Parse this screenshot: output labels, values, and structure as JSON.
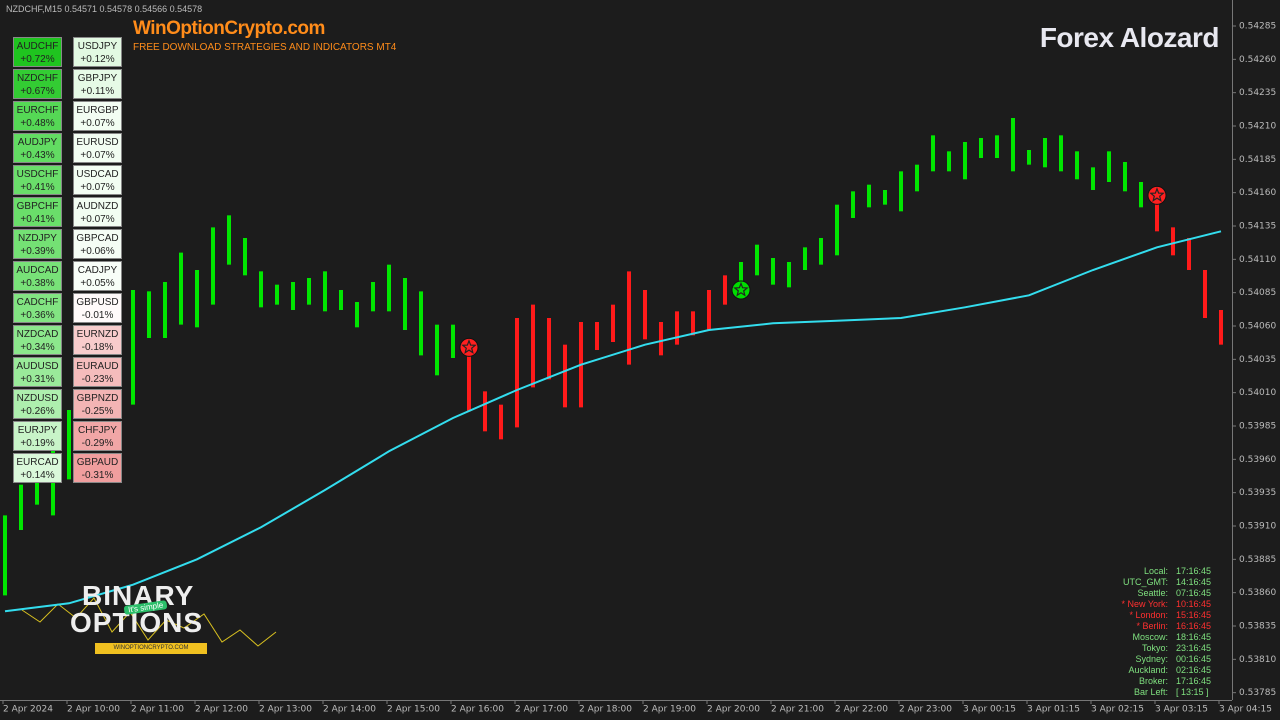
{
  "header": {
    "symbol_info": "NZDCHF,M15  0.54571 0.54578 0.54566 0.54578",
    "site": "WinOptionCrypto.com",
    "tagline": "FREE DOWNLOAD STRATEGIES AND INDICATORS MT4",
    "brand": "Forex Alozard"
  },
  "logo": {
    "line1": "BINARY",
    "line2": "OPTIONS",
    "badge": "It's simple",
    "url": "WINOPTIONCRYPTO.COM"
  },
  "currency_strength": {
    "columns": [
      [
        {
          "pair": "AUDCHF",
          "change": "+0.72%",
          "color": "#1fc41f"
        },
        {
          "pair": "NZDCHF",
          "change": "+0.67%",
          "color": "#33cc33"
        },
        {
          "pair": "EURCHF",
          "change": "+0.48%",
          "color": "#55d855"
        },
        {
          "pair": "AUDJPY",
          "change": "+0.43%",
          "color": "#62dc62"
        },
        {
          "pair": "USDCHF",
          "change": "+0.41%",
          "color": "#6ade6a"
        },
        {
          "pair": "GBPCHF",
          "change": "+0.41%",
          "color": "#6ade6a"
        },
        {
          "pair": "NZDJPY",
          "change": "+0.39%",
          "color": "#74e174"
        },
        {
          "pair": "AUDCAD",
          "change": "+0.38%",
          "color": "#78e278"
        },
        {
          "pair": "CADCHF",
          "change": "+0.36%",
          "color": "#82e482"
        },
        {
          "pair": "NZDCAD",
          "change": "+0.34%",
          "color": "#8ce78c"
        },
        {
          "pair": "AUDUSD",
          "change": "+0.31%",
          "color": "#9aea9a"
        },
        {
          "pair": "NZDUSD",
          "change": "+0.26%",
          "color": "#aeefae"
        },
        {
          "pair": "EURJPY",
          "change": "+0.19%",
          "color": "#c8f4c8"
        },
        {
          "pair": "EURCAD",
          "change": "+0.14%",
          "color": "#daf8da"
        }
      ],
      [
        {
          "pair": "USDJPY",
          "change": "+0.12%",
          "color": "#e2f9e2"
        },
        {
          "pair": "GBPJPY",
          "change": "+0.11%",
          "color": "#e6fae6"
        },
        {
          "pair": "EURGBP",
          "change": "+0.07%",
          "color": "#f2fdf2"
        },
        {
          "pair": "EURUSD",
          "change": "+0.07%",
          "color": "#f2fdf2"
        },
        {
          "pair": "USDCAD",
          "change": "+0.07%",
          "color": "#f2fdf2"
        },
        {
          "pair": "AUDNZD",
          "change": "+0.07%",
          "color": "#f2fdf2"
        },
        {
          "pair": "GBPCAD",
          "change": "+0.06%",
          "color": "#f5fdf5"
        },
        {
          "pair": "CADJPY",
          "change": "+0.05%",
          "color": "#f8fef8"
        },
        {
          "pair": "GBPUSD",
          "change": "-0.01%",
          "color": "#fffafa"
        },
        {
          "pair": "EURNZD",
          "change": "-0.18%",
          "color": "#f8cccc"
        },
        {
          "pair": "EURAUD",
          "change": "-0.23%",
          "color": "#f5bcbc"
        },
        {
          "pair": "GBPNZD",
          "change": "-0.25%",
          "color": "#f3b4b4"
        },
        {
          "pair": "CHFJPY",
          "change": "-0.29%",
          "color": "#f1a6a6"
        },
        {
          "pair": "GBPAUD",
          "change": "-0.31%",
          "color": "#f09e9e"
        }
      ]
    ]
  },
  "clock": {
    "rows": [
      {
        "label": "Local:",
        "time": "17:16:45",
        "color": "#7fe07f"
      },
      {
        "label": "UTC_GMT:",
        "time": "14:16:45",
        "color": "#7fe07f"
      },
      {
        "label": "Seattle:",
        "time": "07:16:45",
        "color": "#7fe07f"
      },
      {
        "label": "* New York:",
        "time": "10:16:45",
        "color": "#ff3030"
      },
      {
        "label": "* London:",
        "time": "15:16:45",
        "color": "#ff3030"
      },
      {
        "label": "* Berlin:",
        "time": "16:16:45",
        "color": "#ff3030"
      },
      {
        "label": "Moscow:",
        "time": "18:16:45",
        "color": "#7fe07f"
      },
      {
        "label": "Tokyo:",
        "time": "23:16:45",
        "color": "#7fe07f"
      },
      {
        "label": "Sydney:",
        "time": "00:16:45",
        "color": "#7fe07f"
      },
      {
        "label": "Auckland:",
        "time": "02:16:45",
        "color": "#7fe07f"
      },
      {
        "label": "Broker:",
        "time": "17:16:45",
        "color": "#7fe07f"
      },
      {
        "label": "Bar Left:",
        "time": "[ 13:15 ]",
        "color": "#7fe07f"
      }
    ]
  },
  "chart_data": {
    "type": "hilo",
    "high": [
      0.53918,
      0.53941,
      0.53952,
      0.53971,
      0.53997,
      null,
      null,
      null,
      0.54087,
      0.54086,
      0.54093,
      0.54115,
      0.54102,
      0.54134,
      0.54143,
      0.54126,
      0.54101,
      0.54091,
      0.54093,
      0.54096,
      0.54101,
      0.54087,
      0.54078,
      0.54093,
      0.54106,
      0.54096,
      0.54086,
      0.54061,
      0.54061,
      0.54046,
      0.54011,
      0.54001,
      0.54066,
      0.54076,
      0.54066,
      0.54046,
      0.54063,
      0.54063,
      0.54076,
      0.54101,
      0.54087,
      0.54063,
      0.54071,
      0.54071,
      0.54087,
      0.54098,
      0.54108,
      0.54121,
      0.54111,
      0.54108,
      0.54119,
      0.54126,
      0.54151,
      0.54161,
      0.54166,
      0.54162,
      0.54176,
      0.54181,
      0.54203,
      0.54191,
      0.54198,
      0.54201,
      0.54203,
      0.54216,
      0.54192,
      0.54201,
      0.54203,
      0.54191,
      0.54179,
      0.54191,
      0.54183,
      0.54168,
      0.54162,
      0.54134,
      0.54126,
      0.54102,
      0.54072
    ],
    "low": [
      0.53858,
      0.53907,
      0.53926,
      0.53918,
      0.53945,
      null,
      null,
      null,
      0.54001,
      0.54051,
      0.54051,
      0.54061,
      0.54059,
      0.54076,
      0.54106,
      0.54098,
      0.54074,
      0.54076,
      0.54072,
      0.54076,
      0.54071,
      0.54072,
      0.54059,
      0.54071,
      0.54071,
      0.54057,
      0.54038,
      0.54023,
      0.54036,
      0.53996,
      0.53981,
      0.53975,
      0.53984,
      0.54014,
      0.5402,
      0.53999,
      0.53999,
      0.54042,
      0.54048,
      0.54031,
      0.5405,
      0.54038,
      0.54046,
      0.54053,
      0.54057,
      0.54076,
      0.54086,
      0.54098,
      0.54091,
      0.54089,
      0.54102,
      0.54106,
      0.54113,
      0.54141,
      0.54149,
      0.54151,
      0.54146,
      0.54161,
      0.54176,
      0.54176,
      0.5417,
      0.54186,
      0.54186,
      0.54176,
      0.54181,
      0.54179,
      0.54176,
      0.5417,
      0.54162,
      0.54168,
      0.54161,
      0.54149,
      0.54131,
      0.54113,
      0.54102,
      0.54066,
      0.54046
    ],
    "colors": [
      "#00e600",
      "#00e600",
      "#00e600",
      "#00e600",
      "#00e600",
      null,
      null,
      null,
      "#00e600",
      "#00e600",
      "#00e600",
      "#00e600",
      "#00e600",
      "#00e600",
      "#00e600",
      "#00e600",
      "#00e600",
      "#00e600",
      "#00e600",
      "#00e600",
      "#00e600",
      "#00e600",
      "#00e600",
      "#00e600",
      "#00e600",
      "#00e600",
      "#00e600",
      "#00e600",
      "#00e600",
      "#ff1a1a",
      "#ff1a1a",
      "#ff1a1a",
      "#ff1a1a",
      "#ff1a1a",
      "#ff1a1a",
      "#ff1a1a",
      "#ff1a1a",
      "#ff1a1a",
      "#ff1a1a",
      "#ff1a1a",
      "#ff1a1a",
      "#ff1a1a",
      "#ff1a1a",
      "#ff1a1a",
      "#ff1a1a",
      "#ff1a1a",
      "#00e600",
      "#00e600",
      "#00e600",
      "#00e600",
      "#00e600",
      "#00e600",
      "#00e600",
      "#00e600",
      "#00e600",
      "#00e600",
      "#00e600",
      "#00e600",
      "#00e600",
      "#00e600",
      "#00e600",
      "#00e600",
      "#00e600",
      "#00e600",
      "#00e600",
      "#00e600",
      "#00e600",
      "#00e600",
      "#00e600",
      "#00e600",
      "#00e600",
      "#00e600",
      "#ff1a1a",
      "#ff1a1a",
      "#ff1a1a",
      "#ff1a1a",
      "#ff1a1a"
    ],
    "ma": {
      "color": "#33ddee",
      "x": [
        0,
        4,
        8,
        12,
        16,
        20,
        24,
        28,
        32,
        36,
        40,
        44,
        48,
        52,
        56,
        60,
        64,
        68,
        72,
        76
      ],
      "values": [
        0.53846,
        0.53852,
        0.53866,
        0.53885,
        0.53909,
        0.53937,
        0.53966,
        0.53991,
        0.54012,
        0.54031,
        0.54046,
        0.54057,
        0.54062,
        0.54064,
        0.54066,
        0.54074,
        0.54083,
        0.54102,
        0.54119,
        0.54131
      ]
    },
    "signals": [
      {
        "x": 29,
        "value": 0.54044,
        "color": "#ff2020"
      },
      {
        "x": 46,
        "value": 0.54087,
        "color": "#00dd00"
      },
      {
        "x": 72,
        "value": 0.54158,
        "color": "#ff2020"
      }
    ],
    "ylim": [
      0.537795,
      0.543045
    ],
    "yticks": [
      0.54285,
      {
        "value": 0.5426,
        "label": "0.54260"
      },
      0.54235,
      {
        "value": 0.5421,
        "label": "0.54210"
      },
      0.54185,
      {
        "value": 0.5416,
        "label": "0.54160"
      },
      0.54135,
      {
        "value": 0.5411,
        "label": "0.54110"
      },
      0.54085,
      {
        "value": 0.5406,
        "label": "0.54060"
      },
      0.54035,
      {
        "value": 0.5401,
        "label": "0.54010"
      },
      0.53985,
      {
        "value": 0.5396,
        "label": "0.53960"
      },
      0.53935,
      {
        "value": 0.5391,
        "label": "0.53910"
      },
      0.53885,
      {
        "value": 0.5386,
        "label": "0.53860"
      },
      0.53835,
      {
        "value": 0.5381,
        "label": "0.53810"
      },
      0.53785
    ],
    "xlim": [
      -0.3125,
      76.6875
    ],
    "xticks": [
      {
        "value": 0,
        "label": "2 Apr 2024"
      },
      {
        "value": 4,
        "label": "2 Apr 10:00"
      },
      {
        "value": 8,
        "label": "2 Apr 11:00"
      },
      {
        "value": 12,
        "label": "2 Apr 12:00"
      },
      {
        "value": 16,
        "label": "2 Apr 13:00"
      },
      {
        "value": 20,
        "label": "2 Apr 14:00"
      },
      {
        "value": 24,
        "label": "2 Apr 15:00"
      },
      {
        "value": 28,
        "label": "2 Apr 16:00"
      },
      {
        "value": 32,
        "label": "2 Apr 17:00"
      },
      {
        "value": 36,
        "label": "2 Apr 18:00"
      },
      {
        "value": 40,
        "label": "2 Apr 19:00"
      },
      {
        "value": 44,
        "label": "2 Apr 20:00"
      },
      {
        "value": 48,
        "label": "2 Apr 21:00"
      },
      {
        "value": 52,
        "label": "2 Apr 22:00"
      },
      {
        "value": 56,
        "label": "2 Apr 23:00"
      },
      {
        "value": 60,
        "label": "3 Apr 00:15"
      },
      {
        "value": 64,
        "label": "3 Apr 01:15"
      },
      {
        "value": 68,
        "label": "3 Apr 02:15"
      },
      {
        "value": 72,
        "label": "3 Apr 03:15"
      },
      {
        "value": 76,
        "label": "3 Apr 04:15"
      }
    ]
  }
}
